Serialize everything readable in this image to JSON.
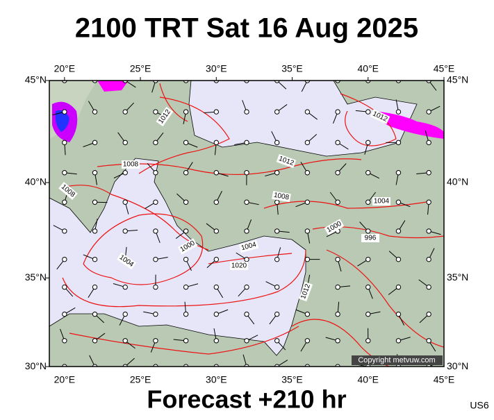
{
  "title": "2100 TRT Sat 16 Aug 2025",
  "footer": "Forecast +210 hr",
  "code": "US6",
  "copyright": "Copyright metvuw.com",
  "lon_ticks": [
    {
      "value": 20,
      "label": "20°E"
    },
    {
      "value": 25,
      "label": "25°E"
    },
    {
      "value": 30,
      "label": "30°E"
    },
    {
      "value": 35,
      "label": "35°E"
    },
    {
      "value": 40,
      "label": "40°E"
    },
    {
      "value": 45,
      "label": "45°E"
    }
  ],
  "lat_ticks": [
    {
      "value": 45,
      "label": "45°N"
    },
    {
      "value": 40,
      "label": "40°N"
    },
    {
      "value": 35,
      "label": "35°N"
    },
    {
      "value": 30,
      "label": "30°N"
    }
  ],
  "isobar_labels": [
    1012,
    1012,
    1012,
    1008,
    1008,
    1008,
    1004,
    1004,
    1004,
    1000,
    1000,
    996,
    1020,
    1012
  ]
}
